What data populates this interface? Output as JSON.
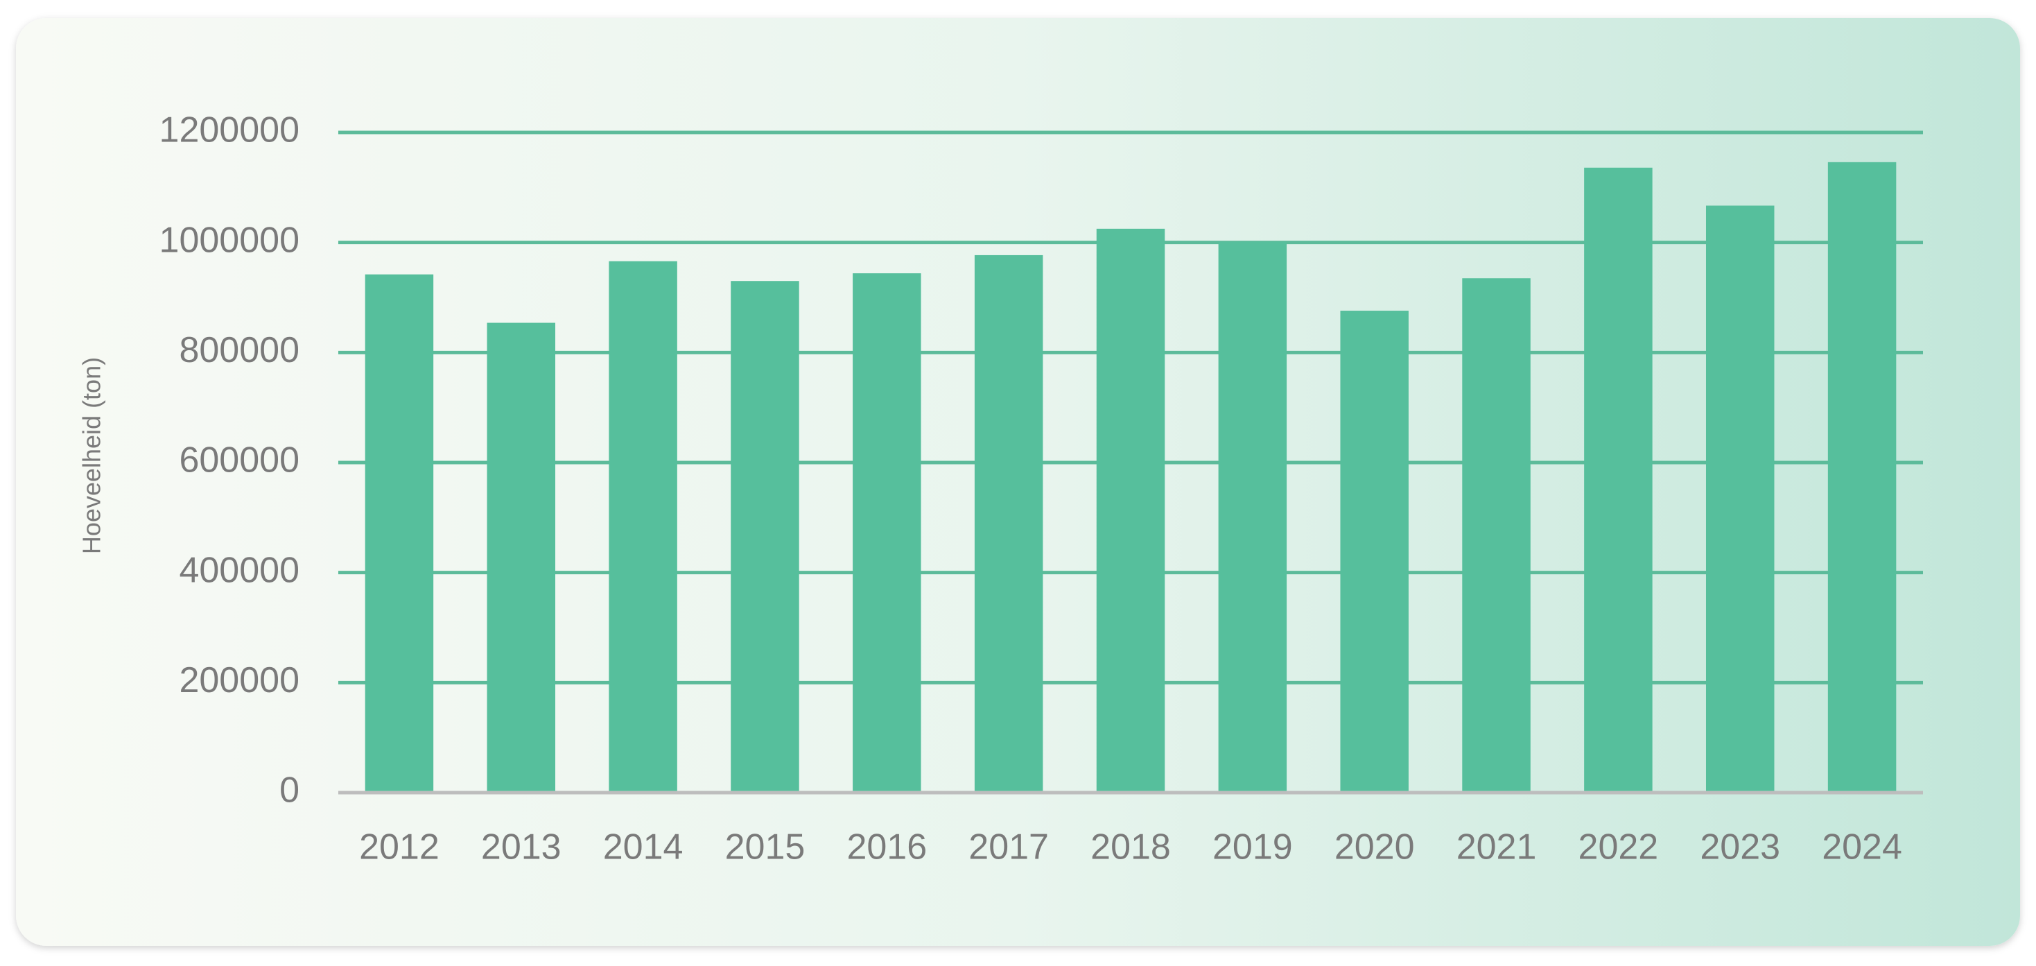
{
  "chart_data": {
    "type": "bar",
    "y_label": "Hoeveelheid (ton)",
    "categories": [
      "2012",
      "2013",
      "2014",
      "2015",
      "2016",
      "2017",
      "2018",
      "2019",
      "2020",
      "2021",
      "2022",
      "2023",
      "2024"
    ],
    "values": [
      942000,
      854000,
      966000,
      930000,
      944000,
      977000,
      1025000,
      1001000,
      876000,
      935000,
      1136000,
      1067000,
      1146000
    ],
    "color": "#56bf9c",
    "ylim": [
      0,
      1200000
    ],
    "yticks": [
      0,
      200000,
      400000,
      600000,
      800000,
      1000000,
      1200000
    ],
    "grid": true
  }
}
